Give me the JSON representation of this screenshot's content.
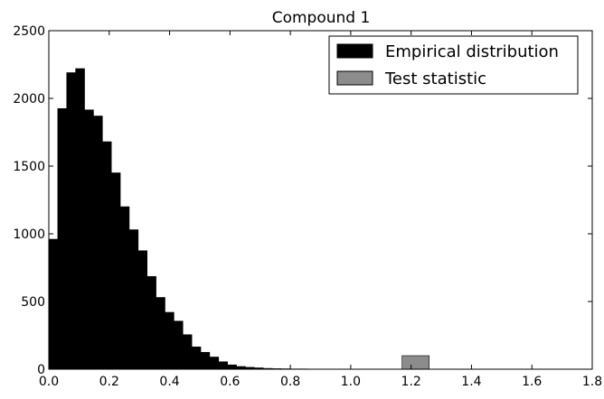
{
  "chart_data": {
    "type": "bar",
    "title": "Compound 1",
    "xlabel": "",
    "ylabel": "",
    "xlim": [
      0.0,
      1.8
    ],
    "ylim": [
      0,
      2500
    ],
    "x_ticks": [
      0.0,
      0.2,
      0.4,
      0.6,
      0.8,
      1.0,
      1.2,
      1.4,
      1.6,
      1.8
    ],
    "x_tick_labels": [
      "0.0",
      "0.2",
      "0.4",
      "0.6",
      "0.8",
      "1.0",
      "1.2",
      "1.4",
      "1.6",
      "1.8"
    ],
    "y_ticks": [
      0,
      500,
      1000,
      1500,
      2000,
      2500
    ],
    "y_tick_labels": [
      "0",
      "500",
      "1000",
      "1500",
      "2000",
      "2500"
    ],
    "legend_position": "top-right",
    "grid": false,
    "series": [
      {
        "name": "Empirical distribution",
        "color": "#000000",
        "bin_width": 0.0296,
        "bin_starts": [
          0.0,
          0.0296,
          0.0592,
          0.0888,
          0.1184,
          0.148,
          0.1776,
          0.2072,
          0.2368,
          0.2664,
          0.296,
          0.3256,
          0.3552,
          0.3848,
          0.4144,
          0.444,
          0.4736,
          0.5032,
          0.5328,
          0.5624,
          0.592,
          0.6216,
          0.6512,
          0.6808,
          0.7104,
          0.74,
          0.7696,
          0.7992,
          0.8288,
          0.8584,
          0.888,
          0.9176,
          0.9472,
          0.9768
        ],
        "values": [
          960,
          1925,
          2190,
          2220,
          1915,
          1870,
          1680,
          1450,
          1200,
          1030,
          875,
          685,
          530,
          420,
          355,
          255,
          165,
          125,
          90,
          55,
          32,
          20,
          14,
          10,
          6,
          4,
          3,
          2,
          2,
          1,
          1,
          1,
          1,
          1
        ]
      },
      {
        "name": "Test statistic",
        "color": "#8c8c8c",
        "bin_width": 0.09,
        "bin_starts": [
          1.17
        ],
        "values": [
          100
        ]
      }
    ]
  }
}
